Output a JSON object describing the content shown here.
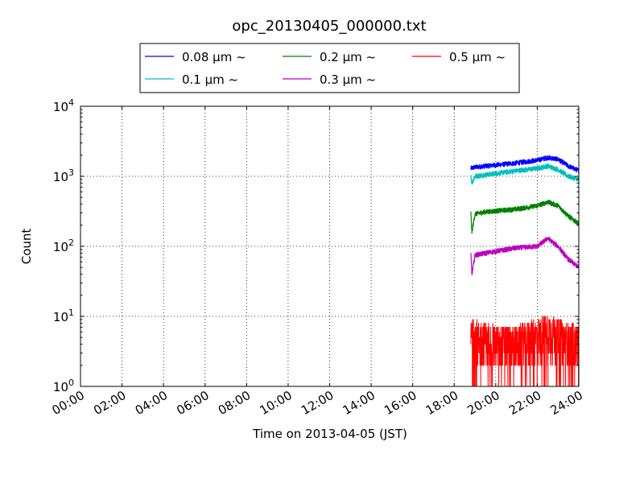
{
  "chart_data": {
    "type": "line",
    "title": "opc_20130405_000000.txt",
    "xlabel": "Time on 2013-04-05 (JST)",
    "ylabel": "Count",
    "x_ticks": [
      "00:00",
      "02:00",
      "04:00",
      "06:00",
      "08:00",
      "10:00",
      "12:00",
      "14:00",
      "16:00",
      "18:00",
      "20:00",
      "22:00",
      "24:00"
    ],
    "xlim_hours": [
      0,
      24
    ],
    "yscale": "log",
    "ylim": [
      1,
      10000
    ],
    "y_ticks": [
      {
        "base": "10",
        "exp": "0"
      },
      {
        "base": "10",
        "exp": "1"
      },
      {
        "base": "10",
        "exp": "2"
      },
      {
        "base": "10",
        "exp": "3"
      },
      {
        "base": "10",
        "exp": "4"
      }
    ],
    "grid": true,
    "legend_position": "top-center",
    "data_start_hour": 18.8,
    "data_end_hour": 24,
    "series": [
      {
        "name": "0.08 μm ~",
        "color": "#0000ff",
        "pattern": "smooth",
        "points": [
          [
            18.8,
            1300
          ],
          [
            19.0,
            1350
          ],
          [
            19.5,
            1400
          ],
          [
            20.0,
            1450
          ],
          [
            21.0,
            1550
          ],
          [
            22.0,
            1700
          ],
          [
            22.5,
            1850
          ],
          [
            23.0,
            1750
          ],
          [
            23.5,
            1400
          ],
          [
            24.0,
            1200
          ]
        ]
      },
      {
        "name": "0.1 μm ~",
        "color": "#00bfbf",
        "pattern": "smooth",
        "points": [
          [
            18.8,
            1050
          ],
          [
            18.85,
            800
          ],
          [
            19.0,
            1000
          ],
          [
            19.5,
            1050
          ],
          [
            20.0,
            1100
          ],
          [
            21.0,
            1200
          ],
          [
            22.0,
            1300
          ],
          [
            22.5,
            1400
          ],
          [
            23.0,
            1250
          ],
          [
            23.5,
            1000
          ],
          [
            24.0,
            900
          ]
        ]
      },
      {
        "name": "0.2 μm ~",
        "color": "#008000",
        "pattern": "smooth",
        "points": [
          [
            18.8,
            300
          ],
          [
            18.85,
            160
          ],
          [
            19.0,
            290
          ],
          [
            19.5,
            310
          ],
          [
            20.0,
            320
          ],
          [
            21.0,
            340
          ],
          [
            22.0,
            380
          ],
          [
            22.5,
            430
          ],
          [
            23.0,
            380
          ],
          [
            23.5,
            270
          ],
          [
            24.0,
            210
          ]
        ]
      },
      {
        "name": "0.3 μm ~",
        "color": "#bf00bf",
        "pattern": "smooth",
        "points": [
          [
            18.8,
            80
          ],
          [
            18.85,
            40
          ],
          [
            19.0,
            75
          ],
          [
            19.5,
            80
          ],
          [
            20.0,
            85
          ],
          [
            21.0,
            95
          ],
          [
            22.0,
            100
          ],
          [
            22.5,
            130
          ],
          [
            23.0,
            100
          ],
          [
            23.5,
            65
          ],
          [
            24.0,
            50
          ]
        ]
      },
      {
        "name": "0.5 μm ~",
        "color": "#ff0000",
        "pattern": "noisy",
        "points": [
          [
            18.8,
            5
          ],
          [
            20.0,
            4
          ],
          [
            21.0,
            4
          ],
          [
            22.0,
            5
          ],
          [
            22.5,
            6
          ],
          [
            23.0,
            5
          ],
          [
            24.0,
            4
          ]
        ]
      }
    ]
  }
}
